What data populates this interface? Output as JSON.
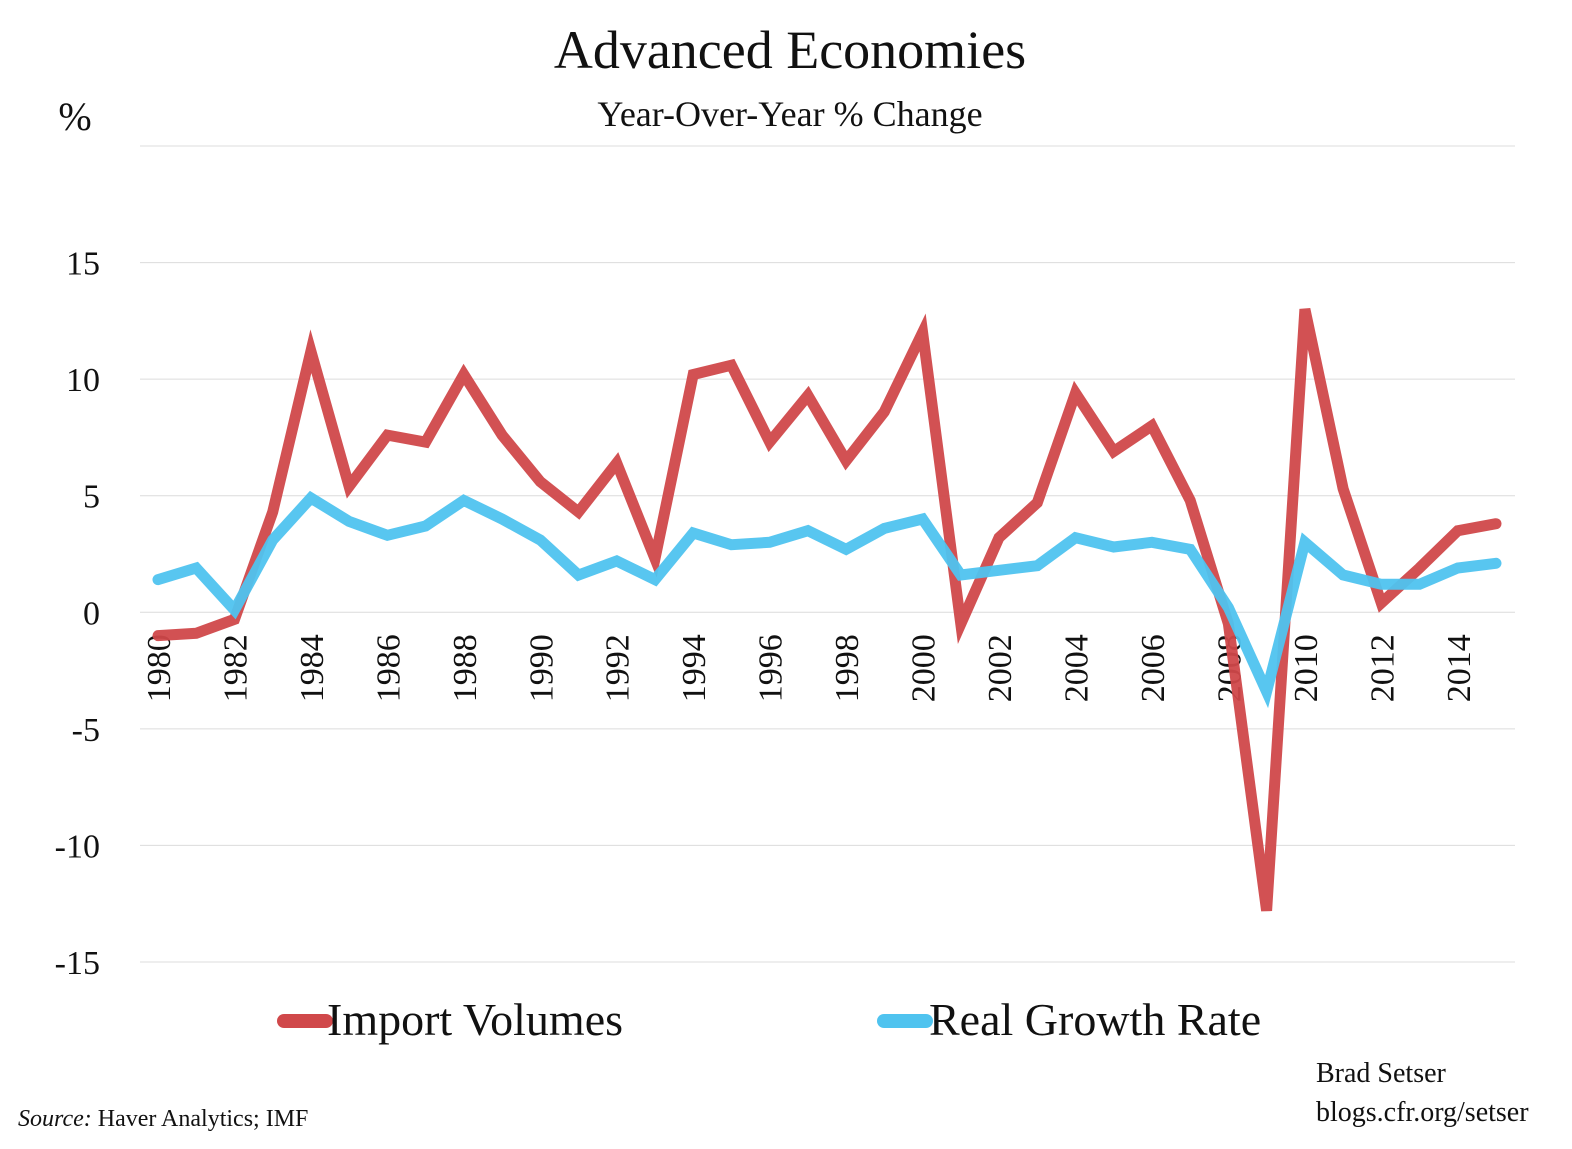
{
  "chart_data": {
    "type": "line",
    "title": "Advanced Economies",
    "subtitle": "Year-Over-Year % Change",
    "ylabel": "%",
    "xlabel": "",
    "ylim": [
      -15,
      20
    ],
    "yticks": [
      15,
      10,
      5,
      0,
      -5,
      -10,
      -15
    ],
    "ytick_labels": [
      "15",
      "10",
      "5",
      "0",
      "-5",
      "-10",
      "-15"
    ],
    "xlim": [
      1980,
      2015
    ],
    "xticks": [
      1980,
      1982,
      1984,
      1986,
      1988,
      1990,
      1992,
      1994,
      1996,
      1998,
      2000,
      2002,
      2004,
      2006,
      2008,
      2010,
      2012,
      2014
    ],
    "xtick_labels": [
      "1980",
      "1982",
      "1984",
      "1986",
      "1988",
      "1990",
      "1992",
      "1994",
      "1996",
      "1998",
      "2000",
      "2002",
      "2004",
      "2006",
      "2008",
      "2010",
      "2012",
      "2014"
    ],
    "grid": true,
    "legend_position": "bottom",
    "x": [
      1980,
      1981,
      1982,
      1983,
      1984,
      1985,
      1986,
      1987,
      1988,
      1989,
      1990,
      1991,
      1992,
      1993,
      1994,
      1995,
      1996,
      1997,
      1998,
      1999,
      2000,
      2001,
      2002,
      2003,
      2004,
      2005,
      2006,
      2007,
      2008,
      2009,
      2010,
      2011,
      2012,
      2013,
      2014,
      2015
    ],
    "series": [
      {
        "name": "Import Volumes",
        "color": "#d0484a",
        "values": [
          -1.0,
          -0.9,
          -0.3,
          4.3,
          11.2,
          5.4,
          7.6,
          7.3,
          10.2,
          7.6,
          5.6,
          4.3,
          6.4,
          2.3,
          10.2,
          10.6,
          7.3,
          9.3,
          6.5,
          8.6,
          12.0,
          -0.5,
          3.2,
          4.7,
          9.4,
          6.9,
          8.0,
          4.8,
          -0.5,
          -12.8,
          13.0,
          5.3,
          0.4,
          1.9,
          3.5,
          3.8
        ]
      },
      {
        "name": "Real Growth Rate",
        "color": "#4fc3ef",
        "values": [
          1.4,
          1.9,
          0.1,
          3.1,
          4.9,
          3.9,
          3.3,
          3.7,
          4.8,
          4.0,
          3.1,
          1.6,
          2.2,
          1.4,
          3.4,
          2.9,
          3.0,
          3.5,
          2.7,
          3.6,
          4.0,
          1.6,
          1.8,
          2.0,
          3.2,
          2.8,
          3.0,
          2.7,
          0.2,
          -3.4,
          3.0,
          1.6,
          1.2,
          1.2,
          1.9,
          2.1
        ]
      }
    ]
  },
  "credit": {
    "author": "Brad Setser",
    "site": "blogs.cfr.org/setser"
  },
  "source": {
    "lead": "Source:",
    "text": " Haver Analytics; IMF"
  }
}
